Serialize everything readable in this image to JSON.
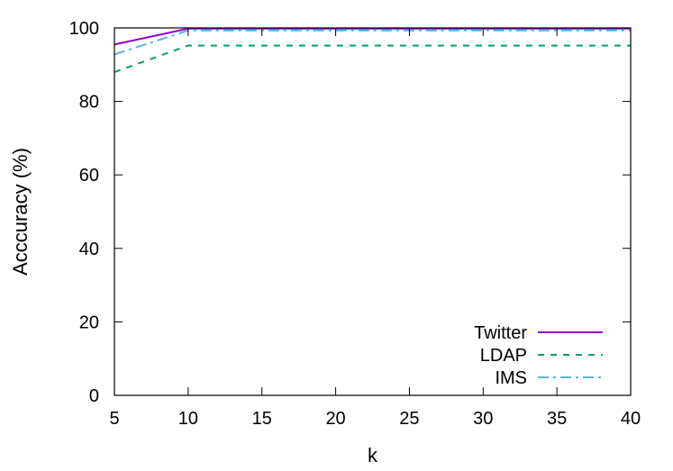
{
  "chart_data": {
    "type": "line",
    "title": "",
    "xlabel": "k",
    "ylabel": "Acccuracy (%)",
    "x": [
      5,
      10,
      15,
      20,
      25,
      30,
      35,
      40
    ],
    "xlim": [
      5,
      40
    ],
    "ylim": [
      0,
      100
    ],
    "xticks": [
      5,
      10,
      15,
      20,
      25,
      30,
      35,
      40
    ],
    "yticks": [
      0,
      20,
      40,
      60,
      80,
      100
    ],
    "grid": false,
    "legend_position": "bottom-right",
    "series": [
      {
        "name": "Twitter",
        "color": "#9400d3",
        "dash": "solid",
        "values": [
          95.5,
          99.8,
          99.8,
          99.8,
          99.8,
          99.8,
          99.8,
          99.8
        ]
      },
      {
        "name": "LDAP",
        "color": "#009e73",
        "dash": "dashed",
        "values": [
          88.0,
          95.2,
          95.2,
          95.2,
          95.2,
          95.2,
          95.2,
          95.2
        ]
      },
      {
        "name": "IMS",
        "color": "#56b4e9",
        "dash": "dash-dot",
        "values": [
          92.8,
          99.3,
          99.3,
          99.3,
          99.3,
          99.3,
          99.3,
          99.3
        ]
      }
    ]
  }
}
